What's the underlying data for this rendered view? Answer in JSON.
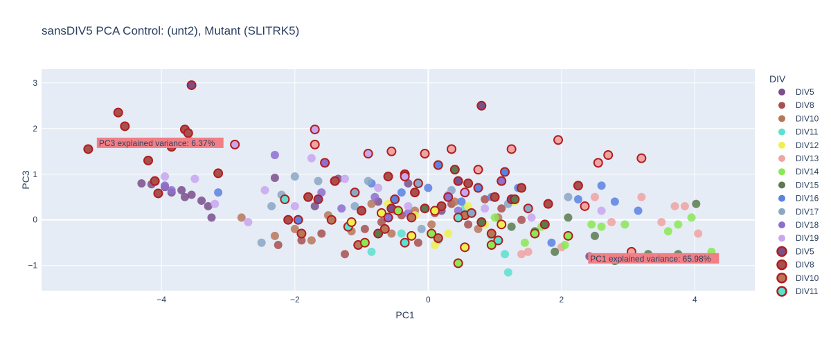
{
  "chart_data": {
    "type": "scatter",
    "title": "sansDIV5 PCA Control: (unt2), Mutant (SLITRK5)",
    "xlabel": "PC1",
    "ylabel": "PC3",
    "xlim": [
      -5.8,
      4.9
    ],
    "ylim": [
      -1.55,
      3.3
    ],
    "xticks": [
      "−4",
      "−2",
      "0",
      "2",
      "4"
    ],
    "xtick_values": [
      -4,
      -2,
      0,
      2,
      4
    ],
    "yticks": [
      "−1",
      "0",
      "1",
      "2",
      "3"
    ],
    "ytick_values": [
      -1,
      0,
      1,
      2,
      3
    ],
    "grid": true,
    "legend": {
      "title": "DIV",
      "placement": "right",
      "entries": [
        {
          "label": "DIV5",
          "color": "#7a4f8c",
          "mutant": false
        },
        {
          "label": "DIV8",
          "color": "#a8504f",
          "mutant": false
        },
        {
          "label": "DIV10",
          "color": "#b9775a",
          "mutant": false
        },
        {
          "label": "DIV11",
          "color": "#5ce0cf",
          "mutant": false
        },
        {
          "label": "DIV12",
          "color": "#eef050",
          "mutant": false
        },
        {
          "label": "DIV13",
          "color": "#f0a3a3",
          "mutant": false
        },
        {
          "label": "DIV14",
          "color": "#8be855",
          "mutant": false
        },
        {
          "label": "DIV15",
          "color": "#5b7a4f",
          "mutant": false
        },
        {
          "label": "DIV16",
          "color": "#5b82e0",
          "mutant": false
        },
        {
          "label": "DIV17",
          "color": "#8aa7c4",
          "mutant": false
        },
        {
          "label": "DIV18",
          "color": "#8e6fcf",
          "mutant": false
        },
        {
          "label": "DIV19",
          "color": "#c9a6ef",
          "mutant": false
        },
        {
          "label": "DIV5",
          "color": "#7a4f8c",
          "mutant": true
        },
        {
          "label": "DIV8",
          "color": "#a8504f",
          "mutant": true
        },
        {
          "label": "DIV10",
          "color": "#b9775a",
          "mutant": true
        },
        {
          "label": "DIV11",
          "color": "#5ce0cf",
          "mutant": true
        }
      ]
    },
    "annotations": [
      {
        "text": "PC3 explained variance: 6.37%",
        "x": -4.95,
        "y": 1.68
      },
      {
        "text": "PC1 explained variance: 65.98%",
        "x": 2.42,
        "y": -0.85
      }
    ],
    "series": [
      {
        "name": "DIV5",
        "color": "#7a4f8c",
        "mutant": false,
        "x": [
          -4.9,
          -4.3,
          -4.15,
          -3.95,
          -3.85,
          -3.7,
          -3.65,
          -3.55,
          -3.4,
          -3.3,
          -3.25,
          -2.3,
          -1.7,
          -1.35,
          -0.75,
          -0.3,
          0.2,
          2.42
        ],
        "y": [
          1.68,
          0.8,
          0.78,
          0.72,
          0.6,
          0.65,
          0.5,
          0.55,
          0.42,
          0.3,
          0.05,
          0.92,
          0.3,
          0.9,
          0.4,
          0.8,
          0.2,
          -0.8
        ]
      },
      {
        "name": "DIV8",
        "color": "#a8504f",
        "mutant": false,
        "x": [
          -2.25,
          -1.9,
          -1.6,
          -1.25,
          -0.95,
          -0.7,
          -0.4,
          -0.15,
          0.1,
          0.35,
          0.6,
          0.85,
          1.1,
          1.4
        ],
        "y": [
          -0.55,
          -0.45,
          -0.3,
          -0.75,
          -0.2,
          -0.05,
          0.1,
          -0.5,
          0.15,
          0.35,
          -0.1,
          0.45,
          0.25,
          0.0
        ]
      },
      {
        "name": "DIV10",
        "color": "#b9775a",
        "mutant": false,
        "x": [
          -2.8,
          -2.3,
          -2.0,
          -1.75,
          -1.5,
          -1.15,
          -0.85,
          -0.55,
          -0.2,
          0.05,
          0.4,
          0.75,
          1.05
        ],
        "y": [
          0.05,
          -0.35,
          -0.2,
          -0.45,
          0.1,
          -0.25,
          0.35,
          -0.3,
          0.2,
          -0.1,
          0.4,
          -0.2,
          0.05
        ]
      },
      {
        "name": "DIV11",
        "color": "#5ce0cf",
        "mutant": false,
        "x": [
          -0.85,
          -0.4,
          0.15,
          0.55,
          0.95,
          1.15,
          1.2
        ],
        "y": [
          -0.7,
          -0.3,
          -0.45,
          0.25,
          -0.35,
          -0.75,
          -1.15
        ]
      },
      {
        "name": "DIV12",
        "color": "#eef050",
        "mutant": false,
        "x": [
          -0.6,
          -0.2,
          0.1,
          0.3,
          0.6,
          0.85,
          1.3
        ],
        "y": [
          0.35,
          0.1,
          -0.55,
          -0.3,
          0.3,
          -0.1,
          0.4
        ]
      },
      {
        "name": "DIV13",
        "color": "#f0a3a3",
        "mutant": false,
        "x": [
          1.5,
          2.0,
          2.5,
          2.75,
          3.2,
          3.5,
          3.7,
          3.85,
          4.05,
          1.4
        ],
        "y": [
          -0.7,
          -0.6,
          0.5,
          -0.05,
          0.5,
          -0.05,
          0.3,
          0.3,
          -0.3,
          -0.75
        ]
      },
      {
        "name": "DIV14",
        "color": "#8be855",
        "mutant": false,
        "x": [
          1.0,
          1.45,
          1.7,
          2.05,
          2.45,
          2.6,
          2.95,
          3.6,
          3.75,
          3.95,
          4.25
        ],
        "y": [
          0.05,
          -0.5,
          -0.15,
          -0.55,
          -0.1,
          -0.15,
          -0.1,
          -0.25,
          -0.1,
          0.05,
          -0.7
        ]
      },
      {
        "name": "DIV15",
        "color": "#5b7a4f",
        "mutant": false,
        "x": [
          1.25,
          1.6,
          1.9,
          2.1,
          2.5,
          2.8,
          3.3,
          3.75,
          4.02
        ],
        "y": [
          -0.15,
          -0.25,
          -0.7,
          0.05,
          -0.35,
          -0.9,
          -0.75,
          -0.75,
          0.35
        ]
      },
      {
        "name": "DIV16",
        "color": "#5b82e0",
        "mutant": false,
        "x": [
          -3.15,
          -0.85,
          -0.4,
          0.0,
          0.5,
          0.95,
          1.35,
          1.85,
          2.25,
          2.6,
          2.8,
          3.15
        ],
        "y": [
          0.6,
          0.8,
          0.6,
          0.7,
          0.4,
          0.5,
          0.7,
          -0.5,
          0.45,
          0.75,
          0.4,
          0.2
        ]
      },
      {
        "name": "DIV17",
        "color": "#8aa7c4",
        "mutant": false,
        "x": [
          -2.5,
          -2.35,
          -2.2,
          -2.0,
          -1.65,
          -1.1,
          -0.9,
          -0.5,
          -0.1,
          0.35,
          1.2,
          2.1
        ],
        "y": [
          -0.5,
          0.3,
          0.55,
          0.95,
          0.85,
          0.3,
          0.85,
          0.2,
          -0.2,
          0.65,
          0.35,
          0.5
        ]
      },
      {
        "name": "DIV18",
        "color": "#8e6fcf",
        "mutant": false,
        "x": [
          -3.95,
          -3.85,
          -2.3,
          -1.6,
          -1.3,
          -0.8,
          -0.3,
          0.05,
          0.45
        ],
        "y": [
          0.75,
          0.65,
          1.42,
          0.6,
          0.25,
          0.5,
          0.15,
          -0.3,
          0.2
        ]
      },
      {
        "name": "DIV19",
        "color": "#c9a6ef",
        "mutant": false,
        "x": [
          -3.95,
          -3.5,
          -3.2,
          -2.7,
          -2.45,
          -2.0,
          -1.75,
          -1.25,
          -0.75,
          -0.3,
          0.3,
          0.85,
          1.55,
          2.6
        ],
        "y": [
          0.95,
          0.9,
          0.35,
          -0.05,
          0.65,
          0.3,
          1.35,
          0.9,
          0.7,
          0.3,
          0.55,
          0.25,
          0.05,
          0.2
        ]
      },
      {
        "name": "DIV5",
        "color": "#7a4f8c",
        "mutant": true,
        "x": [
          -3.55,
          -1.65,
          -0.35,
          0.8,
          1.25,
          0.45,
          -0.55
        ],
        "y": [
          2.95,
          0.45,
          1.0,
          2.5,
          0.45,
          0.85,
          0.25
        ]
      },
      {
        "name": "DIV8",
        "color": "#a8504f",
        "mutant": true,
        "x": [
          -5.1,
          -4.65,
          -4.55,
          -4.2,
          -4.1,
          -4.05,
          -3.85,
          -3.7,
          -3.65,
          -3.6,
          -3.55,
          -3.15,
          -2.1,
          -1.8,
          -1.4,
          -1.0,
          -0.6,
          -0.2,
          0.2,
          0.6,
          1.0,
          1.4,
          1.8,
          2.25
        ],
        "y": [
          1.55,
          2.35,
          2.05,
          1.3,
          0.85,
          0.58,
          1.6,
          1.68,
          1.98,
          1.9,
          1.7,
          1.02,
          0.0,
          0.5,
          0.85,
          0.2,
          0.95,
          0.6,
          0.3,
          0.8,
          0.5,
          0.7,
          0.35,
          0.75
        ]
      },
      {
        "name": "DIV10",
        "color": "#b9775a",
        "mutant": true,
        "x": [
          -1.9,
          -1.45,
          -1.05,
          -0.65,
          -0.25,
          0.15,
          0.55,
          0.95
        ],
        "y": [
          -0.3,
          0.0,
          -0.55,
          -0.2,
          0.05,
          -0.4,
          0.1,
          -0.3
        ]
      },
      {
        "name": "DIV11",
        "color": "#5ce0cf",
        "mutant": true,
        "x": [
          -2.15,
          -1.2,
          -0.35,
          0.45,
          1.05
        ],
        "y": [
          0.45,
          -0.15,
          -0.5,
          0.05,
          -0.45
        ]
      },
      {
        "name": "DIV12",
        "color": "#eef050",
        "mutant": true,
        "x": [
          -1.15,
          -0.7,
          -0.25,
          0.1,
          0.55,
          1.1
        ],
        "y": [
          -0.05,
          0.15,
          -0.35,
          0.2,
          -0.6,
          -0.1
        ]
      },
      {
        "name": "DIV13",
        "color": "#f0a3a3",
        "mutant": true,
        "x": [
          -1.7,
          -0.55,
          -0.05,
          0.35,
          0.75,
          1.25,
          1.95,
          2.35,
          2.55,
          2.7,
          3.05,
          3.2
        ],
        "y": [
          1.65,
          1.5,
          1.45,
          1.55,
          1.1,
          1.55,
          1.75,
          0.3,
          1.25,
          1.42,
          -0.7,
          1.35
        ]
      },
      {
        "name": "DIV14",
        "color": "#8be855",
        "mutant": true,
        "x": [
          -0.95,
          -0.45,
          0.05,
          0.45,
          0.95,
          1.6,
          2.1
        ],
        "y": [
          -0.5,
          0.2,
          -0.3,
          -0.95,
          -0.55,
          -0.3,
          -0.35
        ]
      },
      {
        "name": "DIV15",
        "color": "#5b7a4f",
        "mutant": true,
        "x": [
          -0.75,
          -0.05,
          0.4,
          0.8,
          1.3,
          1.75
        ],
        "y": [
          -0.3,
          0.25,
          1.1,
          -0.05,
          0.45,
          -0.1
        ]
      },
      {
        "name": "DIV16",
        "color": "#5b82e0",
        "mutant": true,
        "x": [
          -1.95,
          -0.5,
          0.15,
          0.75,
          1.15
        ],
        "y": [
          0.0,
          0.45,
          1.2,
          0.7,
          1.05
        ]
      },
      {
        "name": "DIV17",
        "color": "#8aa7c4",
        "mutant": true,
        "x": [
          -1.1,
          -0.15,
          0.65,
          1.5
        ],
        "y": [
          0.6,
          0.8,
          0.15,
          0.25
        ]
      },
      {
        "name": "DIV18",
        "color": "#8e6fcf",
        "mutant": true,
        "x": [
          -1.55,
          -0.6,
          0.3,
          1.1
        ],
        "y": [
          1.25,
          0.05,
          0.5,
          0.85
        ]
      },
      {
        "name": "DIV19",
        "color": "#c9a6ef",
        "mutant": true,
        "x": [
          -2.9,
          -1.7,
          -0.9,
          -0.35,
          0.55
        ],
        "y": [
          1.65,
          1.98,
          1.45,
          0.95,
          0.6
        ]
      }
    ]
  }
}
